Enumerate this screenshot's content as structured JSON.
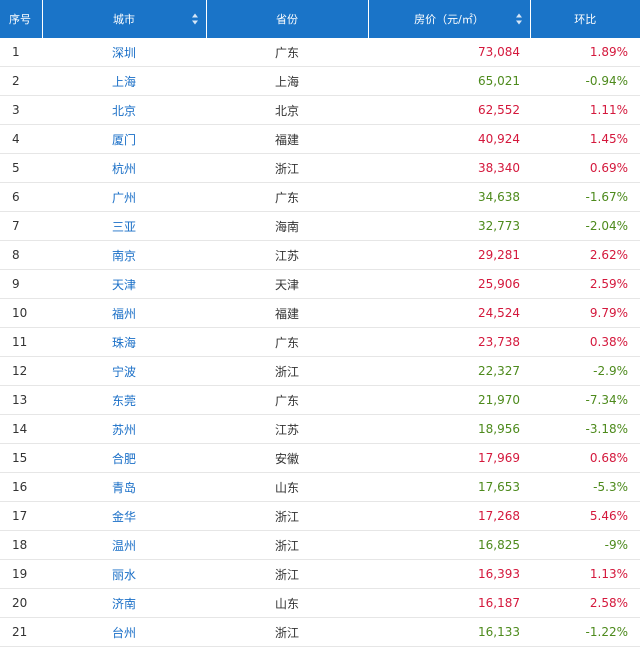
{
  "colors": {
    "header_bg": "#1a74c8",
    "city_link": "#1a6fc7",
    "rise": "#d4183c",
    "fall": "#4d8a1c"
  },
  "table": {
    "headers": {
      "index": "序号",
      "city": "城市",
      "province": "省份",
      "price": "房价（元/㎡）",
      "change": "环比"
    },
    "sortable_columns": [
      "city",
      "price"
    ],
    "rows": [
      {
        "index": "1",
        "city": "深圳",
        "province": "广东",
        "price": "73,084",
        "change": "1.89%",
        "trend": "up"
      },
      {
        "index": "2",
        "city": "上海",
        "province": "上海",
        "price": "65,021",
        "change": "-0.94%",
        "trend": "down"
      },
      {
        "index": "3",
        "city": "北京",
        "province": "北京",
        "price": "62,552",
        "change": "1.11%",
        "trend": "up"
      },
      {
        "index": "4",
        "city": "厦门",
        "province": "福建",
        "price": "40,924",
        "change": "1.45%",
        "trend": "up"
      },
      {
        "index": "5",
        "city": "杭州",
        "province": "浙江",
        "price": "38,340",
        "change": "0.69%",
        "trend": "up"
      },
      {
        "index": "6",
        "city": "广州",
        "province": "广东",
        "price": "34,638",
        "change": "-1.67%",
        "trend": "down"
      },
      {
        "index": "7",
        "city": "三亚",
        "province": "海南",
        "price": "32,773",
        "change": "-2.04%",
        "trend": "down"
      },
      {
        "index": "8",
        "city": "南京",
        "province": "江苏",
        "price": "29,281",
        "change": "2.62%",
        "trend": "up"
      },
      {
        "index": "9",
        "city": "天津",
        "province": "天津",
        "price": "25,906",
        "change": "2.59%",
        "trend": "up"
      },
      {
        "index": "10",
        "city": "福州",
        "province": "福建",
        "price": "24,524",
        "change": "9.79%",
        "trend": "up"
      },
      {
        "index": "11",
        "city": "珠海",
        "province": "广东",
        "price": "23,738",
        "change": "0.38%",
        "trend": "up"
      },
      {
        "index": "12",
        "city": "宁波",
        "province": "浙江",
        "price": "22,327",
        "change": "-2.9%",
        "trend": "down"
      },
      {
        "index": "13",
        "city": "东莞",
        "province": "广东",
        "price": "21,970",
        "change": "-7.34%",
        "trend": "down"
      },
      {
        "index": "14",
        "city": "苏州",
        "province": "江苏",
        "price": "18,956",
        "change": "-3.18%",
        "trend": "down"
      },
      {
        "index": "15",
        "city": "合肥",
        "province": "安徽",
        "price": "17,969",
        "change": "0.68%",
        "trend": "up"
      },
      {
        "index": "16",
        "city": "青岛",
        "province": "山东",
        "price": "17,653",
        "change": "-5.3%",
        "trend": "down"
      },
      {
        "index": "17",
        "city": "金华",
        "province": "浙江",
        "price": "17,268",
        "change": "5.46%",
        "trend": "up"
      },
      {
        "index": "18",
        "city": "温州",
        "province": "浙江",
        "price": "16,825",
        "change": "-9%",
        "trend": "down"
      },
      {
        "index": "19",
        "city": "丽水",
        "province": "浙江",
        "price": "16,393",
        "change": "1.13%",
        "trend": "up"
      },
      {
        "index": "20",
        "city": "济南",
        "province": "山东",
        "price": "16,187",
        "change": "2.58%",
        "trend": "up"
      },
      {
        "index": "21",
        "city": "台州",
        "province": "浙江",
        "price": "16,133",
        "change": "-1.22%",
        "trend": "down"
      }
    ]
  }
}
